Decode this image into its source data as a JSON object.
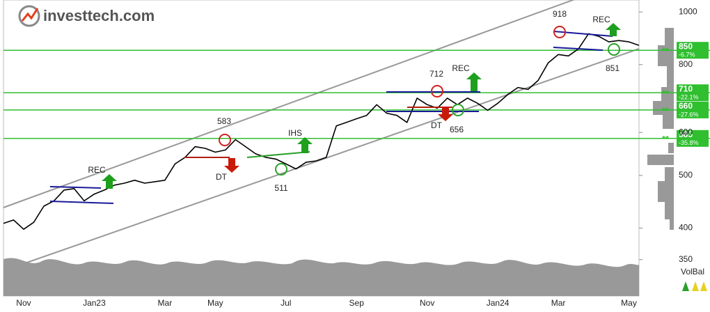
{
  "brand": "investtech.com",
  "chart_data": {
    "type": "line",
    "categories": [
      null,
      null,
      "Nov",
      null,
      null,
      null,
      null,
      null,
      null,
      "Jan23",
      null,
      null,
      null,
      null,
      null,
      null,
      "Mar",
      null,
      null,
      null,
      null,
      "May",
      null,
      null,
      null,
      null,
      null,
      null,
      "Jul",
      null,
      null,
      null,
      null,
      null,
      null,
      "Sep",
      null,
      null,
      null,
      null,
      null,
      null,
      "Nov",
      null,
      null,
      null,
      null,
      null,
      null,
      "Jan24",
      null,
      null,
      null,
      null,
      null,
      "Mar",
      null,
      null,
      null,
      null,
      null,
      null,
      "May",
      null
    ],
    "series": [
      {
        "name": "Price",
        "color": "#000000",
        "values": [
          408,
          414,
          398,
          410,
          439,
          449,
          470,
          473,
          449,
          462,
          470,
          480,
          484,
          490,
          484,
          487,
          490,
          525,
          540,
          565,
          561,
          552,
          557,
          582,
          565,
          548,
          540,
          536,
          525,
          514,
          529,
          532,
          540,
          617,
          626,
          636,
          645,
          675,
          651,
          645,
          626,
          694,
          675,
          665,
          694,
          675,
          694,
          679,
          659,
          679,
          705,
          726,
          720,
          748,
          806,
          835,
          830,
          855,
          912,
          902,
          881,
          886,
          881,
          868
        ]
      }
    ],
    "ylim": [
      300,
      1052
    ],
    "yticks": [
      350,
      400,
      500,
      600,
      800,
      1000
    ],
    "log": true,
    "level_color": "#2fbf2f",
    "level_marker": "**",
    "levels": [
      {
        "value": 850,
        "change": "-6.7%"
      },
      {
        "value": 710,
        "change": "-22.1%"
      },
      {
        "value": 660,
        "change": "-27.6%"
      },
      {
        "value": 585,
        "change": "-35.8%"
      }
    ],
    "annotations": [
      918,
      "REC",
      851,
      712,
      "REC",
      "DT",
      656,
      583,
      "DT",
      "IHS",
      511,
      "REC"
    ],
    "volume_label": "VolBal"
  }
}
